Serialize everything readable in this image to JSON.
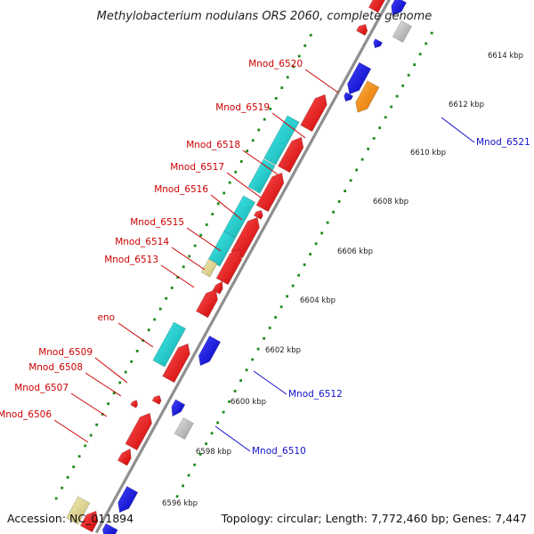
{
  "title": "Methylobacterium nodulans ORS 2060, complete genome",
  "footer": {
    "accession": "Accession: NC_011894",
    "summary": "Topology: circular; Length: 7,772,460 bp; Genes: 7,447"
  },
  "colors": {
    "forward_cds": "#ee1111",
    "reverse_cds": "#1a1ae6",
    "rna": "#22cccc",
    "pseudo": "#e8dc96",
    "other": "#aaaaaa",
    "highlight": "#ff8a00",
    "tick_dots": "#1a8a1a",
    "backbone": "#8f8f8f",
    "forward_label": "#cc0000",
    "reverse_label": "#1111cc"
  },
  "scale": {
    "unit": "kbp",
    "ticks": [
      {
        "label": "6596 kbp"
      },
      {
        "label": "6598 kbp"
      },
      {
        "label": "6600 kbp"
      },
      {
        "label": "6602 kbp"
      },
      {
        "label": "6604 kbp"
      },
      {
        "label": "6606 kbp"
      },
      {
        "label": "6608 kbp"
      },
      {
        "label": "6610 kbp"
      },
      {
        "label": "6612 kbp"
      },
      {
        "label": "6614 kbp"
      }
    ]
  },
  "labels_forward": [
    {
      "name": "Mnod_6520"
    },
    {
      "name": "Mnod_6519"
    },
    {
      "name": "Mnod_6518"
    },
    {
      "name": "Mnod_6517"
    },
    {
      "name": "Mnod_6516"
    },
    {
      "name": "Mnod_6515"
    },
    {
      "name": "Mnod_6514"
    },
    {
      "name": "Mnod_6513"
    },
    {
      "name": "eno"
    },
    {
      "name": "Mnod_6509"
    },
    {
      "name": "Mnod_6508"
    },
    {
      "name": "Mnod_6507"
    },
    {
      "name": "Mnod_6506"
    }
  ],
  "labels_reverse": [
    {
      "name": "Mnod_6521"
    },
    {
      "name": "Mnod_6512"
    },
    {
      "name": "Mnod_6510"
    }
  ]
}
